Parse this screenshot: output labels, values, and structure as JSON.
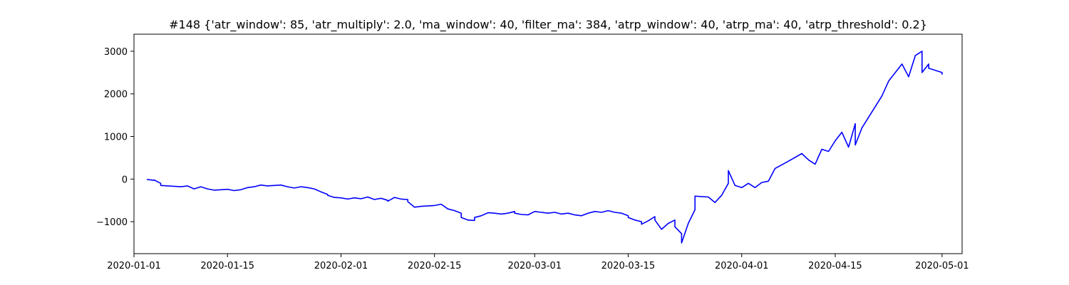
{
  "chart_data": {
    "type": "line",
    "title": "#148 {'atr_window': 85, 'atr_multiply': 2.0, 'ma_window': 40, 'filter_ma': 384, 'atrp_window': 40, 'atrp_ma': 40, 'atrp_threshold': 0.2}",
    "xlabel": "",
    "ylabel": "",
    "x_type": "date",
    "xlim": [
      "2020-01-01",
      "2020-05-04"
    ],
    "ylim": [
      -1750,
      3400
    ],
    "x_ticks": [
      "2020-01-01",
      "2020-01-15",
      "2020-02-01",
      "2020-02-15",
      "2020-03-01",
      "2020-03-15",
      "2020-04-01",
      "2020-04-15",
      "2020-05-01"
    ],
    "y_ticks": [
      -1000,
      0,
      1000,
      2000,
      3000
    ],
    "grid": false,
    "line_color": "#0000ff",
    "series": [
      {
        "name": "",
        "points": [
          [
            "2020-01-03",
            0
          ],
          [
            "2020-01-03",
            -10
          ],
          [
            "2020-01-04",
            -30
          ],
          [
            "2020-01-04",
            -20
          ],
          [
            "2020-01-05",
            -100
          ],
          [
            "2020-01-05",
            -150
          ],
          [
            "2020-01-08",
            -180
          ],
          [
            "2020-01-09",
            -160
          ],
          [
            "2020-01-10",
            -230
          ],
          [
            "2020-01-11",
            -180
          ],
          [
            "2020-01-12",
            -230
          ],
          [
            "2020-01-13",
            -260
          ],
          [
            "2020-01-15",
            -240
          ],
          [
            "2020-01-16",
            -270
          ],
          [
            "2020-01-17",
            -250
          ],
          [
            "2020-01-18",
            -200
          ],
          [
            "2020-01-19",
            -180
          ],
          [
            "2020-01-20",
            -140
          ],
          [
            "2020-01-21",
            -160
          ],
          [
            "2020-01-23",
            -140
          ],
          [
            "2020-01-24",
            -180
          ],
          [
            "2020-01-25",
            -210
          ],
          [
            "2020-01-26",
            -180
          ],
          [
            "2020-01-27",
            -200
          ],
          [
            "2020-01-28",
            -230
          ],
          [
            "2020-01-29",
            -300
          ],
          [
            "2020-01-30",
            -360
          ],
          [
            "2020-01-30",
            -380
          ],
          [
            "2020-01-31",
            -430
          ],
          [
            "2020-02-01",
            -440
          ],
          [
            "2020-02-02",
            -470
          ],
          [
            "2020-02-03",
            -440
          ],
          [
            "2020-02-04",
            -460
          ],
          [
            "2020-02-05",
            -420
          ],
          [
            "2020-02-06",
            -480
          ],
          [
            "2020-02-07",
            -450
          ],
          [
            "2020-02-08",
            -500
          ],
          [
            "2020-02-08",
            -520
          ],
          [
            "2020-02-09",
            -430
          ],
          [
            "2020-02-10",
            -470
          ],
          [
            "2020-02-11",
            -480
          ],
          [
            "2020-02-11",
            -530
          ],
          [
            "2020-02-12",
            -660
          ],
          [
            "2020-02-13",
            -640
          ],
          [
            "2020-02-15",
            -620
          ],
          [
            "2020-02-16",
            -590
          ],
          [
            "2020-02-17",
            -700
          ],
          [
            "2020-02-18",
            -740
          ],
          [
            "2020-02-19",
            -800
          ],
          [
            "2020-02-19",
            -900
          ],
          [
            "2020-02-20",
            -960
          ],
          [
            "2020-02-21",
            -970
          ],
          [
            "2020-02-21",
            -900
          ],
          [
            "2020-02-22",
            -860
          ],
          [
            "2020-02-23",
            -790
          ],
          [
            "2020-02-24",
            -800
          ],
          [
            "2020-02-25",
            -820
          ],
          [
            "2020-02-26",
            -800
          ],
          [
            "2020-02-27",
            -760
          ],
          [
            "2020-02-27",
            -800
          ],
          [
            "2020-02-28",
            -830
          ],
          [
            "2020-02-29",
            -840
          ],
          [
            "2020-03-01",
            -760
          ],
          [
            "2020-03-02",
            -780
          ],
          [
            "2020-03-03",
            -800
          ],
          [
            "2020-03-04",
            -780
          ],
          [
            "2020-03-05",
            -820
          ],
          [
            "2020-03-06",
            -800
          ],
          [
            "2020-03-07",
            -840
          ],
          [
            "2020-03-08",
            -860
          ],
          [
            "2020-03-09",
            -800
          ],
          [
            "2020-03-10",
            -760
          ],
          [
            "2020-03-11",
            -780
          ],
          [
            "2020-03-12",
            -740
          ],
          [
            "2020-03-13",
            -780
          ],
          [
            "2020-03-14",
            -800
          ],
          [
            "2020-03-15",
            -860
          ],
          [
            "2020-03-15",
            -900
          ],
          [
            "2020-03-16",
            -960
          ],
          [
            "2020-03-17",
            -1000
          ],
          [
            "2020-03-17",
            -1060
          ],
          [
            "2020-03-18",
            -980
          ],
          [
            "2020-03-19",
            -880
          ],
          [
            "2020-03-19",
            -960
          ],
          [
            "2020-03-20",
            -1180
          ],
          [
            "2020-03-21",
            -1040
          ],
          [
            "2020-03-22",
            -960
          ],
          [
            "2020-03-22",
            -1120
          ],
          [
            "2020-03-23",
            -1280
          ],
          [
            "2020-03-23",
            -1500
          ],
          [
            "2020-03-24",
            -1040
          ],
          [
            "2020-03-25",
            -720
          ],
          [
            "2020-03-25",
            -400
          ],
          [
            "2020-03-27",
            -420
          ],
          [
            "2020-03-28",
            -550
          ],
          [
            "2020-03-29",
            -380
          ],
          [
            "2020-03-30",
            -100
          ],
          [
            "2020-03-30",
            200
          ],
          [
            "2020-03-31",
            -150
          ],
          [
            "2020-04-01",
            -200
          ],
          [
            "2020-04-02",
            -100
          ],
          [
            "2020-04-03",
            -200
          ],
          [
            "2020-04-04",
            -80
          ],
          [
            "2020-04-05",
            -50
          ],
          [
            "2020-04-06",
            250
          ],
          [
            "2020-04-08",
            420
          ],
          [
            "2020-04-10",
            600
          ],
          [
            "2020-04-11",
            450
          ],
          [
            "2020-04-12",
            350
          ],
          [
            "2020-04-13",
            700
          ],
          [
            "2020-04-14",
            650
          ],
          [
            "2020-04-15",
            900
          ],
          [
            "2020-04-16",
            1100
          ],
          [
            "2020-04-17",
            750
          ],
          [
            "2020-04-18",
            1300
          ],
          [
            "2020-04-18",
            800
          ],
          [
            "2020-04-19",
            1200
          ],
          [
            "2020-04-22",
            1950
          ],
          [
            "2020-04-23",
            2300
          ],
          [
            "2020-04-24",
            2500
          ],
          [
            "2020-04-25",
            2700
          ],
          [
            "2020-04-26",
            2400
          ],
          [
            "2020-04-27",
            2900
          ],
          [
            "2020-04-28",
            3000
          ],
          [
            "2020-04-28",
            2500
          ],
          [
            "2020-04-29",
            2700
          ],
          [
            "2020-04-29",
            2600
          ],
          [
            "2020-04-30",
            2550
          ],
          [
            "2020-05-01",
            2500
          ],
          [
            "2020-05-01",
            2450
          ]
        ]
      }
    ]
  }
}
